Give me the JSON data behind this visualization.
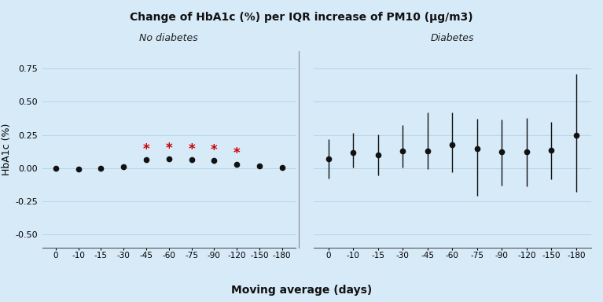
{
  "title": "Change of HbA1c (%) per IQR increase of PM10 (μg/m3)",
  "xlabel": "Moving average (days)",
  "ylabel": "HbA1c (%)",
  "background_color": "#d6eaf8",
  "ylim": [
    -0.6,
    0.88
  ],
  "yticks": [
    -0.5,
    -0.25,
    0.0,
    0.25,
    0.5,
    0.75
  ],
  "ytick_labels": [
    "-0.50",
    "-0.25",
    "0.00",
    "0.25",
    "0.50",
    "0.75"
  ],
  "no_diabetes_label": "No diabetes",
  "diabetes_label": "Diabetes",
  "nd_x_labels": [
    "0",
    "-10",
    "-15",
    "-30",
    "-45",
    "-60",
    "-75",
    "-90",
    "-120",
    "-150",
    "-180"
  ],
  "nd_x": [
    0,
    1,
    2,
    3,
    4,
    5,
    6,
    7,
    8,
    9,
    10
  ],
  "nd_y": [
    0.0,
    -0.005,
    -0.002,
    0.01,
    0.062,
    0.068,
    0.062,
    0.057,
    0.03,
    0.018,
    0.005
  ],
  "nd_ylow": [
    -0.002,
    -0.007,
    -0.004,
    0.008,
    0.053,
    0.057,
    0.052,
    0.047,
    0.02,
    0.008,
    -0.006
  ],
  "nd_yhigh": [
    0.002,
    -0.003,
    0.0,
    0.012,
    0.071,
    0.079,
    0.072,
    0.067,
    0.04,
    0.028,
    0.016
  ],
  "nd_significant": [
    false,
    false,
    false,
    false,
    true,
    true,
    true,
    true,
    true,
    false,
    false
  ],
  "d_x_labels": [
    "0",
    "-10",
    "-15",
    "-30",
    "-45",
    "-60",
    "-75",
    "-90",
    "-120",
    "-150",
    "-180"
  ],
  "d_x": [
    0,
    1,
    2,
    3,
    4,
    5,
    6,
    7,
    8,
    9,
    10
  ],
  "d_y": [
    0.07,
    0.115,
    0.1,
    0.13,
    0.13,
    0.175,
    0.145,
    0.12,
    0.12,
    0.135,
    0.245
  ],
  "d_ylow": [
    -0.08,
    0.005,
    -0.055,
    0.005,
    -0.005,
    -0.03,
    -0.21,
    -0.13,
    -0.14,
    -0.085,
    -0.18
  ],
  "d_yhigh": [
    0.215,
    0.265,
    0.255,
    0.325,
    0.42,
    0.42,
    0.37,
    0.365,
    0.375,
    0.35,
    0.71
  ],
  "point_color": "#111111",
  "star_color": "#cc0000",
  "line_color": "#111111",
  "grid_color": "#b8d4e8",
  "spine_color": "#555555"
}
